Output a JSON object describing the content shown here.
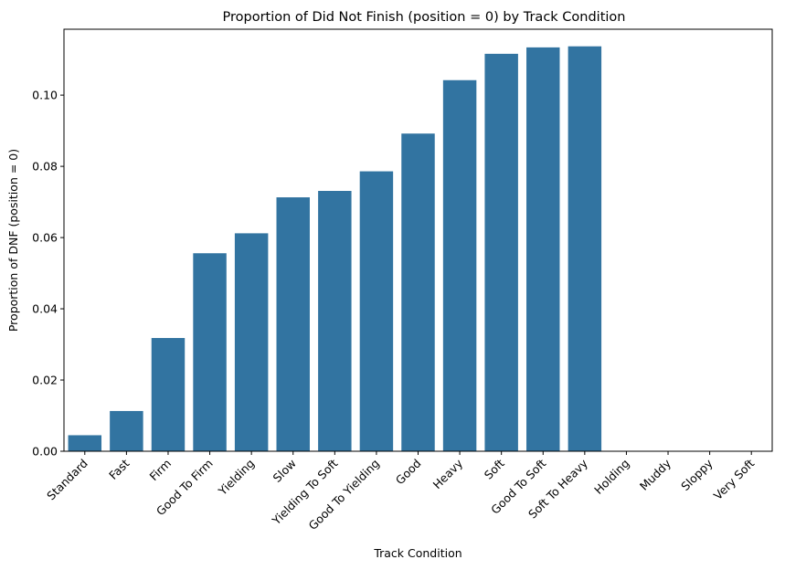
{
  "chart_data": {
    "type": "bar",
    "title": "Proportion of Did Not Finish (position = 0) by Track Condition",
    "xlabel": "Track Condition",
    "ylabel": "Proportion of DNF (position = 0)",
    "categories": [
      "Standard",
      "Fast",
      "Firm",
      "Good To Firm",
      "Yielding",
      "Slow",
      "Yielding To Soft",
      "Good To Yielding",
      "Good",
      "Heavy",
      "Soft",
      "Good To Soft",
      "Soft To Heavy",
      "Holding",
      "Muddy",
      "Sloppy",
      "Very Soft"
    ],
    "values": [
      0.0045,
      0.0113,
      0.0318,
      0.0556,
      0.0612,
      0.0713,
      0.0731,
      0.0786,
      0.0892,
      0.1042,
      0.1116,
      0.1134,
      0.1137,
      0,
      0,
      0,
      0
    ],
    "ylim": [
      0,
      0.1185
    ],
    "yticks": [
      "0.00",
      "0.02",
      "0.04",
      "0.06",
      "0.08",
      "0.10"
    ],
    "ytick_values": [
      0,
      0.02,
      0.04,
      0.06,
      0.08,
      0.1
    ],
    "bar_color": "#3274a1",
    "grid": false,
    "legend": "none"
  }
}
